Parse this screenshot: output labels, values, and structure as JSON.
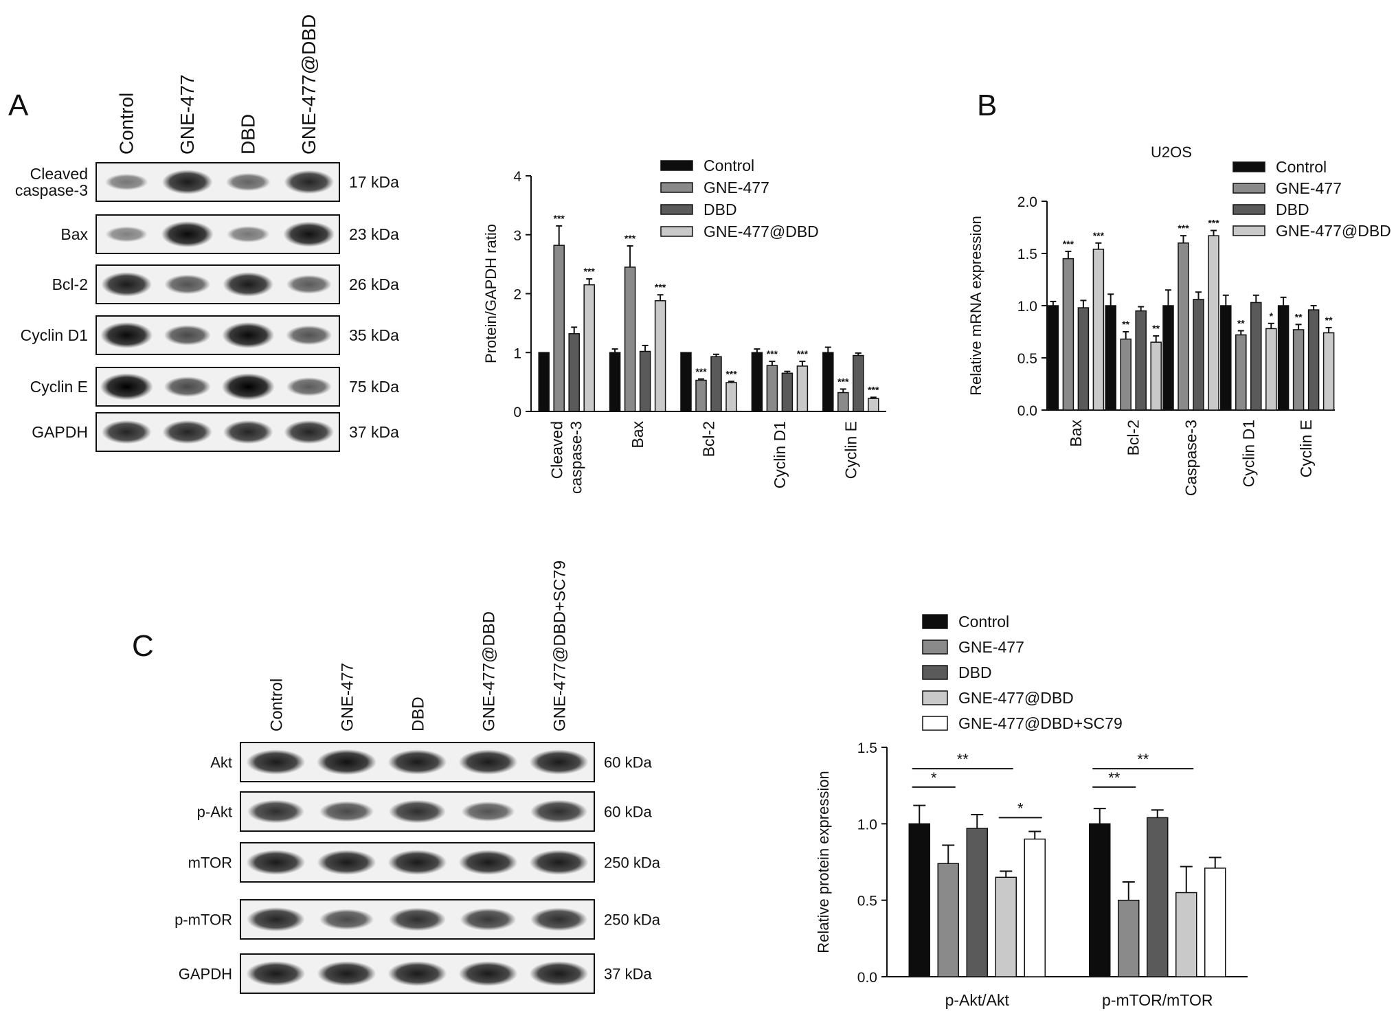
{
  "panels": {
    "A": "A",
    "B": "B",
    "C": "C"
  },
  "colors": {
    "control": "#0d0d0d",
    "gne477": "#8a8a8a",
    "dbd": "#5a5a5a",
    "gne477_dbd": "#c9c9c9",
    "gne477_dbd_sc79": "#ffffff"
  },
  "blot_a": {
    "lanes": [
      "Control",
      "GNE-477",
      "DBD",
      "GNE-477@DBD"
    ],
    "rows": [
      {
        "label": [
          "Cleaved",
          "caspase-3"
        ],
        "kda": "17 kDa",
        "intensity": [
          0.35,
          0.85,
          0.45,
          0.8
        ]
      },
      {
        "label": [
          "Bax"
        ],
        "kda": "23 kDa",
        "intensity": [
          0.3,
          0.95,
          0.35,
          0.9
        ]
      },
      {
        "label": [
          "Bcl-2"
        ],
        "kda": "26 kDa",
        "intensity": [
          0.85,
          0.55,
          0.85,
          0.5
        ]
      },
      {
        "label": [
          "Cyclin D1"
        ],
        "kda": "35 kDa",
        "intensity": [
          0.95,
          0.6,
          0.95,
          0.55
        ]
      },
      {
        "label": [
          "Cyclin E"
        ],
        "kda": "75 kDa",
        "intensity": [
          1.0,
          0.6,
          1.0,
          0.5
        ]
      },
      {
        "label": [
          "GAPDH"
        ],
        "kda": "37 kDa",
        "intensity": [
          0.8,
          0.8,
          0.8,
          0.8
        ]
      }
    ]
  },
  "blot_c": {
    "lanes": [
      "Control",
      "GNE-477",
      "DBD",
      "GNE-477@DBD",
      "GNE-477@DBD+SC79"
    ],
    "rows": [
      {
        "label": [
          "Akt"
        ],
        "kda": "60 kDa",
        "intensity": [
          0.85,
          0.9,
          0.85,
          0.85,
          0.85
        ]
      },
      {
        "label": [
          "p-Akt"
        ],
        "kda": "60 kDa",
        "intensity": [
          0.75,
          0.6,
          0.75,
          0.55,
          0.75
        ]
      },
      {
        "label": [
          "mTOR"
        ],
        "kda": "250 kDa",
        "intensity": [
          0.85,
          0.85,
          0.85,
          0.85,
          0.85
        ]
      },
      {
        "label": [
          "p-mTOR"
        ],
        "kda": "250 kDa",
        "intensity": [
          0.8,
          0.6,
          0.75,
          0.7,
          0.75
        ]
      },
      {
        "label": [
          "GAPDH"
        ],
        "kda": "37 kDa",
        "intensity": [
          0.85,
          0.85,
          0.85,
          0.85,
          0.85
        ]
      }
    ]
  },
  "chart_data": [
    {
      "type": "bar",
      "panel": "A",
      "title": "",
      "xlabel": "",
      "ylabel": "Protein/GAPDH ratio",
      "ylim": [
        0,
        4
      ],
      "yticks": [
        0,
        1,
        2,
        3,
        4
      ],
      "categories": [
        [
          "Cleaved",
          "caspase-3"
        ],
        [
          "Bax"
        ],
        [
          "Bcl-2"
        ],
        [
          "Cyclin D1"
        ],
        [
          "Cyclin E"
        ]
      ],
      "series": [
        {
          "name": "Control",
          "values": [
            1.0,
            1.0,
            1.0,
            1.0,
            1.0
          ],
          "err": [
            0,
            0.06,
            0,
            0.06,
            0.09
          ],
          "sig": [
            "",
            "",
            "",
            "",
            ""
          ]
        },
        {
          "name": "GNE-477",
          "values": [
            2.82,
            2.45,
            0.53,
            0.78,
            0.32
          ],
          "err": [
            0.33,
            0.36,
            0.02,
            0.07,
            0.06
          ],
          "sig": [
            "***",
            "***",
            "***",
            "***",
            "***"
          ]
        },
        {
          "name": "DBD",
          "values": [
            1.32,
            1.02,
            0.93,
            0.65,
            0.95
          ],
          "err": [
            0.11,
            0.1,
            0.04,
            0.03,
            0.04
          ],
          "sig": [
            "",
            "",
            "",
            "",
            ""
          ]
        },
        {
          "name": "GNE-477@DBD",
          "values": [
            2.15,
            1.88,
            0.49,
            0.77,
            0.22
          ],
          "err": [
            0.1,
            0.1,
            0.02,
            0.08,
            0.02
          ],
          "sig": [
            "***",
            "***",
            "***",
            "***",
            "***"
          ]
        }
      ],
      "legend": "top-right",
      "grid": false
    },
    {
      "type": "bar",
      "panel": "B",
      "title": "U2OS",
      "xlabel": "",
      "ylabel": "Relative mRNA expression",
      "ylim": [
        0,
        2
      ],
      "yticks": [
        "0.0",
        "0.5",
        "1.0",
        "1.5",
        "2.0"
      ],
      "categories": [
        [
          "Bax"
        ],
        [
          "Bcl-2"
        ],
        [
          "Caspase-3"
        ],
        [
          "Cyclin D1"
        ],
        [
          "Cyclin E"
        ]
      ],
      "series": [
        {
          "name": "Control",
          "values": [
            1.0,
            1.0,
            1.0,
            1.0,
            1.0
          ],
          "err": [
            0.04,
            0.11,
            0.15,
            0.1,
            0.08
          ],
          "sig": [
            "",
            "",
            "",
            "",
            ""
          ]
        },
        {
          "name": "GNE-477",
          "values": [
            1.45,
            0.68,
            1.6,
            0.72,
            0.77
          ],
          "err": [
            0.07,
            0.07,
            0.07,
            0.04,
            0.05
          ],
          "sig": [
            "***",
            "**",
            "***",
            "**",
            "**"
          ]
        },
        {
          "name": "DBD",
          "values": [
            0.98,
            0.95,
            1.06,
            1.03,
            0.96
          ],
          "err": [
            0.07,
            0.04,
            0.07,
            0.07,
            0.04
          ],
          "sig": [
            "",
            "",
            "",
            "",
            ""
          ]
        },
        {
          "name": "GNE-477@DBD",
          "values": [
            1.54,
            0.65,
            1.67,
            0.78,
            0.74
          ],
          "err": [
            0.06,
            0.06,
            0.05,
            0.05,
            0.05
          ],
          "sig": [
            "***",
            "**",
            "***",
            "*",
            "**"
          ]
        }
      ],
      "legend": "top-right",
      "grid": false
    },
    {
      "type": "bar",
      "panel": "C",
      "title": "",
      "xlabel": "",
      "ylabel": "Relative protein expression",
      "ylim": [
        0,
        1.5
      ],
      "yticks": [
        "0.0",
        "0.5",
        "1.0",
        "1.5"
      ],
      "categories": [
        [
          "p-Akt/Akt"
        ],
        [
          "p-mTOR/mTOR"
        ]
      ],
      "series": [
        {
          "name": "Control",
          "values": [
            1.0,
            1.0
          ],
          "err": [
            0.12,
            0.1
          ]
        },
        {
          "name": "GNE-477",
          "values": [
            0.74,
            0.5
          ],
          "err": [
            0.12,
            0.12
          ]
        },
        {
          "name": "DBD",
          "values": [
            0.97,
            1.04
          ],
          "err": [
            0.09,
            0.05
          ]
        },
        {
          "name": "GNE-477@DBD",
          "values": [
            0.65,
            0.55
          ],
          "err": [
            0.04,
            0.17
          ]
        },
        {
          "name": "GNE-477@DBD+SC79",
          "values": [
            0.9,
            0.71
          ],
          "err": [
            0.05,
            0.07
          ]
        }
      ],
      "brackets": [
        {
          "group": 0,
          "from": 0,
          "to": 1,
          "label": "*",
          "level": 1
        },
        {
          "group": 0,
          "from": 0,
          "to": 3,
          "label": "**",
          "level": 2
        },
        {
          "group": 0,
          "from": 3,
          "to": 4,
          "label": "*",
          "level": 0
        },
        {
          "group": 1,
          "from": 0,
          "to": 1,
          "label": "**",
          "level": 1
        },
        {
          "group": 1,
          "from": 0,
          "to": 3,
          "label": "**",
          "level": 2
        }
      ],
      "legend": "top",
      "grid": false
    }
  ]
}
